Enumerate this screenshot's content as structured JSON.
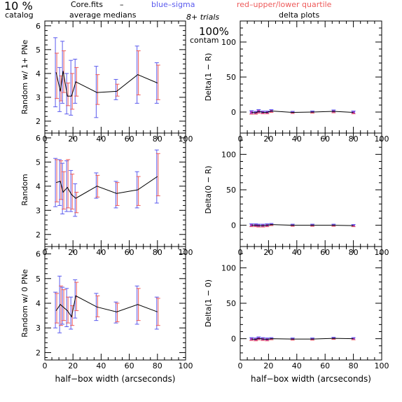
{
  "header": {
    "percent": "10 %",
    "catalog": "catalog",
    "file": "Core.fits",
    "dash": "–",
    "blue_legend": "blue–sigma",
    "red_legend": "red–upper/lower quartile",
    "average_medians": "average medians",
    "trials": "8+ trials",
    "contam_pct": "100%",
    "contam": "contam",
    "delta_plots": "delta plots"
  },
  "colors": {
    "blue": "#5a5aee",
    "red": "#ee5a5a",
    "line": "#000000",
    "delta_fill": "#c040c0"
  },
  "chart_data": [
    {
      "type": "line",
      "ylabel": "Random w/ 1+ PNe",
      "xlabel": "",
      "xlim": [
        0,
        100
      ],
      "ylim": [
        1.5,
        6.2
      ],
      "xticks": [
        "0",
        "20",
        "40",
        "60",
        "80",
        "100"
      ],
      "yticks": [
        "2",
        "3",
        "4",
        "5",
        "6"
      ],
      "x": [
        8,
        11,
        13,
        16,
        19,
        22,
        37,
        51,
        66,
        80
      ],
      "median": [
        4.05,
        3.25,
        4.1,
        3.05,
        3.05,
        3.65,
        3.2,
        3.25,
        3.95,
        3.6
      ],
      "sigma": [
        [
          2.6,
          5.5
        ],
        [
          2.4,
          4.25
        ],
        [
          2.75,
          5.35
        ],
        [
          2.3,
          4.0
        ],
        [
          2.25,
          4.55
        ],
        [
          2.75,
          4.6
        ],
        [
          2.15,
          4.3
        ],
        [
          2.9,
          3.75
        ],
        [
          2.75,
          5.15
        ],
        [
          2.75,
          4.45
        ]
      ],
      "quartile": [
        [
          2.95,
          4.85
        ],
        [
          2.85,
          3.9
        ],
        [
          3.2,
          4.95
        ],
        [
          2.65,
          3.6
        ],
        [
          2.5,
          4.0
        ],
        [
          3.05,
          4.25
        ],
        [
          2.7,
          3.95
        ],
        [
          3.05,
          3.55
        ],
        [
          3.1,
          4.95
        ],
        [
          2.9,
          4.35
        ]
      ]
    },
    {
      "type": "line",
      "ylabel": "Delta(1 − R)",
      "xlabel": "",
      "xlim": [
        0,
        100
      ],
      "ylim": [
        -30,
        130
      ],
      "xticks": [
        "0",
        "20",
        "40",
        "60",
        "80",
        "100"
      ],
      "yticks": [
        "0",
        "50",
        "100"
      ],
      "x": [
        8,
        11,
        13,
        16,
        19,
        22,
        37,
        51,
        66,
        80
      ],
      "median": [
        -0.5,
        -1,
        1,
        -0.5,
        -0.5,
        1.5,
        -0.5,
        0,
        1,
        -0.5
      ],
      "err": [
        2.5,
        2.0,
        2.5,
        2.0,
        2.0,
        2.0,
        1.5,
        1.5,
        2.0,
        2.0
      ]
    },
    {
      "type": "line",
      "ylabel": "Random",
      "xlabel": "",
      "xlim": [
        0,
        100
      ],
      "ylim": [
        1.5,
        6.2
      ],
      "xticks": [
        "0",
        "20",
        "40",
        "60",
        "80",
        "100"
      ],
      "yticks": [
        "2",
        "3",
        "4",
        "5",
        "6"
      ],
      "x": [
        8,
        11,
        13,
        16,
        19,
        22,
        37,
        51,
        66,
        80
      ],
      "median": [
        4.15,
        4.2,
        3.75,
        3.95,
        3.65,
        3.5,
        4.0,
        3.7,
        3.85,
        4.4
      ],
      "sigma": [
        [
          3.15,
          5.15
        ],
        [
          3.2,
          5.1
        ],
        [
          2.85,
          4.95
        ],
        [
          2.95,
          5.05
        ],
        [
          2.95,
          4.65
        ],
        [
          2.75,
          4.1
        ],
        [
          3.5,
          4.55
        ],
        [
          3.1,
          4.2
        ],
        [
          3.1,
          4.6
        ],
        [
          3.3,
          5.5
        ]
      ],
      "quartile": [
        [
          3.35,
          5.1
        ],
        [
          3.45,
          5.05
        ],
        [
          3.05,
          4.6
        ],
        [
          3.1,
          5.1
        ],
        [
          3.05,
          4.5
        ],
        [
          2.9,
          3.75
        ],
        [
          3.55,
          4.45
        ],
        [
          3.2,
          4.15
        ],
        [
          3.2,
          4.4
        ],
        [
          3.6,
          5.35
        ]
      ]
    },
    {
      "type": "line",
      "ylabel": "Delta(0 − R)",
      "xlabel": "",
      "xlim": [
        0,
        100
      ],
      "ylim": [
        -30,
        130
      ],
      "xticks": [
        "0",
        "20",
        "40",
        "60",
        "80",
        "100"
      ],
      "yticks": [
        "0",
        "50",
        "100"
      ],
      "x": [
        8,
        11,
        13,
        16,
        19,
        22,
        37,
        51,
        66,
        80
      ],
      "median": [
        0,
        0,
        -0.5,
        -0.5,
        0,
        1,
        0,
        0,
        0,
        -0.5
      ],
      "err": [
        2.0,
        2.0,
        2.0,
        2.0,
        2.0,
        1.5,
        1.5,
        1.5,
        1.5,
        1.5
      ]
    },
    {
      "type": "line",
      "ylabel": "Random w/ 0 PNe",
      "xlabel": "half−box width (arcseconds)",
      "xlim": [
        0,
        100
      ],
      "ylim": [
        1.7,
        6.3
      ],
      "xticks": [
        "0",
        "20",
        "40",
        "60",
        "80",
        "100"
      ],
      "yticks": [
        "2",
        "3",
        "4",
        "5",
        "6"
      ],
      "x": [
        8,
        11,
        13,
        16,
        19,
        22,
        37,
        51,
        66,
        80
      ],
      "median": [
        3.7,
        3.95,
        3.85,
        3.7,
        3.45,
        4.3,
        3.85,
        3.65,
        3.95,
        3.65
      ],
      "sigma": [
        [
          3.0,
          4.45
        ],
        [
          2.8,
          5.1
        ],
        [
          3.15,
          4.65
        ],
        [
          3.05,
          4.6
        ],
        [
          2.95,
          4.25
        ],
        [
          3.4,
          4.95
        ],
        [
          3.3,
          4.4
        ],
        [
          3.2,
          4.05
        ],
        [
          3.15,
          4.7
        ],
        [
          2.95,
          4.25
        ]
      ],
      "quartile": [
        [
          3.2,
          4.4
        ],
        [
          3.1,
          4.7
        ],
        [
          3.3,
          4.55
        ],
        [
          3.2,
          4.25
        ],
        [
          3.1,
          3.9
        ],
        [
          3.7,
          4.85
        ],
        [
          3.45,
          4.3
        ],
        [
          3.25,
          4.0
        ],
        [
          3.3,
          4.6
        ],
        [
          3.1,
          4.2
        ]
      ]
    },
    {
      "type": "line",
      "ylabel": "Delta(1 − 0)",
      "xlabel": "half−box width (arcseconds)",
      "xlim": [
        0,
        100
      ],
      "ylim": [
        -30,
        130
      ],
      "xticks": [
        "0",
        "20",
        "40",
        "60",
        "80",
        "100"
      ],
      "yticks": [
        "0",
        "50",
        "100"
      ],
      "x": [
        8,
        11,
        13,
        16,
        19,
        22,
        37,
        51,
        66,
        80
      ],
      "median": [
        -0.5,
        -1,
        0.5,
        -0.5,
        -1,
        0,
        -0.5,
        -0.5,
        0.5,
        0
      ],
      "err": [
        2.0,
        2.0,
        2.0,
        2.0,
        2.0,
        1.5,
        1.5,
        1.5,
        1.5,
        1.5
      ]
    }
  ]
}
